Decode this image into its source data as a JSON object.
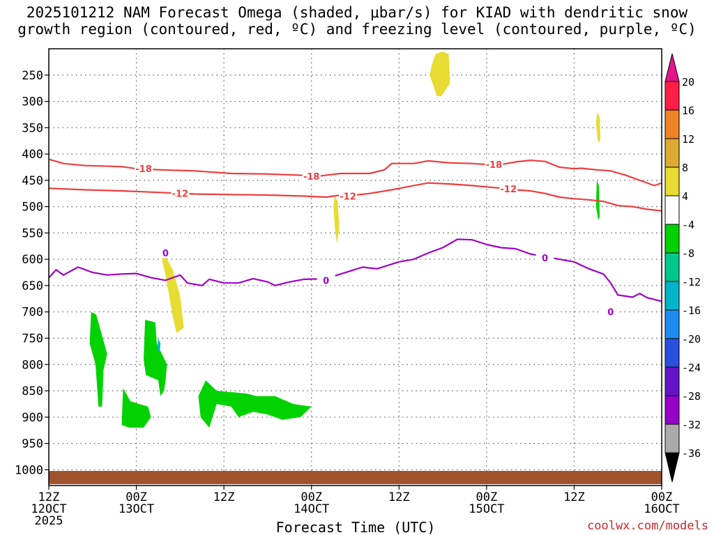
{
  "chart_data": {
    "type": "contour",
    "title_line1": "2025101212 NAM Forecast Omega (shaded, μbar/s) for KIAD with dendritic snow",
    "title_line2": "growth region (contoured, red, ºC) and freezing level (contoured, purple, ºC)",
    "xlabel": "Forecast Time (UTC)",
    "credit": "coolwx.com/models",
    "y_range_hPa": [
      200,
      1030
    ],
    "x_range_hours": [
      0,
      84
    ],
    "y_ticks": [
      250,
      300,
      350,
      400,
      450,
      500,
      550,
      600,
      650,
      700,
      750,
      800,
      850,
      900,
      950,
      1000
    ],
    "x_ticks": [
      {
        "hour": 0,
        "line1": "12Z",
        "line2": "12OCT",
        "line3": "2025"
      },
      {
        "hour": 12,
        "line1": "00Z",
        "line2": "13OCT",
        "line3": ""
      },
      {
        "hour": 24,
        "line1": "12Z",
        "line2": "",
        "line3": ""
      },
      {
        "hour": 36,
        "line1": "00Z",
        "line2": "14OCT",
        "line3": ""
      },
      {
        "hour": 48,
        "line1": "12Z",
        "line2": "",
        "line3": ""
      },
      {
        "hour": 60,
        "line1": "00Z",
        "line2": "15OCT",
        "line3": ""
      },
      {
        "hour": 72,
        "line1": "12Z",
        "line2": "",
        "line3": ""
      },
      {
        "hour": 84,
        "line1": "00Z",
        "line2": "16OCT",
        "line3": ""
      }
    ],
    "colorbar": {
      "levels": [
        "20",
        "16",
        "12",
        "8",
        "4",
        "-4",
        "-8",
        "-12",
        "-16",
        "-20",
        "-24",
        "-28",
        "-32",
        "-36"
      ],
      "colors": [
        "#ff1e46",
        "#f08228",
        "#dcaa32",
        "#e6dc32",
        "#ffffff",
        "#00d200",
        "#00c88c",
        "#00b4c8",
        "#1e8cf0",
        "#2850dc",
        "#6414c8",
        "#9600c8",
        "#aaaaaa"
      ],
      "top_arrow_color": "#e6148c",
      "bottom_arrow_color": "#000000"
    },
    "contours": [
      {
        "name": "dendritic -18C",
        "label": "-18",
        "color": "#f03c3c",
        "points": [
          [
            0,
            410
          ],
          [
            2,
            418
          ],
          [
            5,
            422
          ],
          [
            10,
            424
          ],
          [
            12,
            428
          ],
          [
            15,
            430
          ],
          [
            20,
            432
          ],
          [
            25,
            437
          ],
          [
            30,
            438
          ],
          [
            34,
            440
          ],
          [
            37,
            442
          ],
          [
            40,
            437
          ],
          [
            44,
            437
          ],
          [
            46,
            430
          ],
          [
            47,
            418
          ],
          [
            50,
            418
          ],
          [
            52,
            413
          ],
          [
            55,
            417
          ],
          [
            58,
            418
          ],
          [
            60,
            420
          ],
          [
            62,
            420
          ],
          [
            64,
            415
          ],
          [
            66,
            412
          ],
          [
            68,
            414
          ],
          [
            70,
            425
          ],
          [
            72,
            428
          ],
          [
            73,
            427
          ],
          [
            75,
            430
          ],
          [
            77,
            432
          ],
          [
            79,
            440
          ],
          [
            81,
            450
          ],
          [
            83,
            460
          ],
          [
            84,
            455
          ]
        ],
        "labels_at": [
          [
            13,
            428
          ],
          [
            36,
            442
          ],
          [
            61,
            420
          ]
        ]
      },
      {
        "name": "dendritic -12C",
        "label": "-12",
        "color": "#f03c3c",
        "points": [
          [
            0,
            465
          ],
          [
            5,
            468
          ],
          [
            10,
            470
          ],
          [
            15,
            473
          ],
          [
            20,
            476
          ],
          [
            25,
            477
          ],
          [
            30,
            478
          ],
          [
            35,
            480
          ],
          [
            38,
            482
          ],
          [
            40,
            478
          ],
          [
            42,
            478
          ],
          [
            44,
            475
          ],
          [
            47,
            468
          ],
          [
            50,
            460
          ],
          [
            52,
            455
          ],
          [
            55,
            457
          ],
          [
            58,
            460
          ],
          [
            62,
            465
          ],
          [
            64,
            468
          ],
          [
            66,
            470
          ],
          [
            68,
            475
          ],
          [
            70,
            482
          ],
          [
            72,
            485
          ],
          [
            74,
            487
          ],
          [
            76,
            490
          ],
          [
            78,
            498
          ],
          [
            80,
            500
          ],
          [
            82,
            505
          ],
          [
            84,
            508
          ]
        ],
        "labels_at": [
          [
            18,
            475
          ],
          [
            41,
            480
          ],
          [
            63,
            466
          ]
        ]
      },
      {
        "name": "freezing level 0C",
        "label": "0",
        "color": "#a000c8",
        "points": [
          [
            0,
            635
          ],
          [
            1,
            620
          ],
          [
            2,
            630
          ],
          [
            4,
            615
          ],
          [
            6,
            625
          ],
          [
            8,
            630
          ],
          [
            10,
            628
          ],
          [
            12,
            627
          ],
          [
            14,
            635
          ],
          [
            16,
            640
          ],
          [
            17,
            635
          ],
          [
            18,
            630
          ],
          [
            19,
            645
          ],
          [
            21,
            650
          ],
          [
            22,
            638
          ],
          [
            24,
            645
          ],
          [
            26,
            645
          ],
          [
            28,
            637
          ],
          [
            30,
            643
          ],
          [
            31,
            650
          ],
          [
            33,
            643
          ],
          [
            35,
            638
          ],
          [
            38,
            637
          ],
          [
            40,
            628
          ],
          [
            43,
            615
          ],
          [
            45,
            618
          ],
          [
            48,
            605
          ],
          [
            50,
            600
          ],
          [
            52,
            588
          ],
          [
            54,
            578
          ],
          [
            56,
            562
          ],
          [
            58,
            563
          ],
          [
            60,
            572
          ],
          [
            62,
            578
          ],
          [
            64,
            580
          ],
          [
            66,
            590
          ],
          [
            68,
            595
          ],
          [
            70,
            600
          ],
          [
            72,
            605
          ],
          [
            74,
            618
          ],
          [
            76,
            628
          ],
          [
            77,
            645
          ],
          [
            78,
            668
          ],
          [
            80,
            672
          ],
          [
            81,
            665
          ],
          [
            82,
            673
          ],
          [
            84,
            680
          ]
        ],
        "labels_at": [
          [
            16,
            588
          ],
          [
            38,
            640
          ],
          [
            68,
            597
          ],
          [
            77,
            700
          ]
        ]
      }
    ],
    "omega_regions": [
      {
        "name": "ascent 250hPa",
        "value_range": "4 to 8",
        "color": "#e6dc32",
        "points": [
          [
            52.5,
            230
          ],
          [
            53,
            210
          ],
          [
            54,
            205
          ],
          [
            54.8,
            210
          ],
          [
            55,
            265
          ],
          [
            53.8,
            290
          ],
          [
            53.2,
            290
          ],
          [
            52.2,
            250
          ]
        ]
      },
      {
        "name": "ascent 350hPa",
        "value_range": "4 to 8",
        "color": "#e6dc32",
        "points": [
          [
            75.2,
            320
          ],
          [
            75.5,
            330
          ],
          [
            75.6,
            370
          ],
          [
            75.4,
            380
          ],
          [
            75.2,
            370
          ],
          [
            75.0,
            340
          ]
        ]
      },
      {
        "name": "ascent 520hPa",
        "value_range": "4 to 8",
        "color": "#e6dc32",
        "points": [
          [
            39.2,
            480
          ],
          [
            39.6,
            490
          ],
          [
            39.8,
            540
          ],
          [
            39.5,
            570
          ],
          [
            39.2,
            540
          ],
          [
            39.0,
            500
          ]
        ]
      },
      {
        "name": "ascent 650hPa",
        "value_range": "4 to 8",
        "color": "#e6dc32",
        "points": [
          [
            15.8,
            590
          ],
          [
            17,
            620
          ],
          [
            18,
            670
          ],
          [
            18.5,
            730
          ],
          [
            17.5,
            740
          ],
          [
            17,
            710
          ],
          [
            16.5,
            670
          ],
          [
            16.0,
            630
          ],
          [
            15.5,
            600
          ]
        ]
      },
      {
        "name": "descent 780hPa",
        "value_range": "-4 to -8",
        "color": "#00d200",
        "points": [
          [
            5.8,
            700
          ],
          [
            6.5,
            705
          ],
          [
            8.0,
            780
          ],
          [
            7.5,
            810
          ],
          [
            7.3,
            880
          ],
          [
            6.8,
            880
          ],
          [
            6.4,
            800
          ],
          [
            5.6,
            760
          ]
        ]
      },
      {
        "name": "descent 860hPa",
        "value_range": "-4 to -8",
        "color": "#00d200",
        "points": [
          [
            10.2,
            845
          ],
          [
            11.2,
            870
          ],
          [
            13.6,
            880
          ],
          [
            14.0,
            900
          ],
          [
            13.0,
            920
          ],
          [
            11,
            920
          ],
          [
            10,
            915
          ],
          [
            10.1,
            870
          ]
        ]
      },
      {
        "name": "descent 780hPa b",
        "value_range": "-4 to -8",
        "color": "#00d200",
        "points": [
          [
            13.2,
            715
          ],
          [
            14.6,
            720
          ],
          [
            14.8,
            760
          ],
          [
            16.2,
            800
          ],
          [
            16.0,
            830
          ],
          [
            15.8,
            850
          ],
          [
            15.3,
            860
          ],
          [
            15.0,
            830
          ],
          [
            13.3,
            820
          ],
          [
            13.0,
            790
          ]
        ]
      },
      {
        "name": "descent 870hPa",
        "value_range": "-4 to -8",
        "color": "#00d200",
        "points": [
          [
            21.5,
            830
          ],
          [
            23,
            850
          ],
          [
            27,
            855
          ],
          [
            28.5,
            860
          ],
          [
            31,
            860
          ],
          [
            33.5,
            875
          ],
          [
            36,
            880
          ],
          [
            34.5,
            900
          ],
          [
            32,
            905
          ],
          [
            30,
            895
          ],
          [
            28,
            890
          ],
          [
            26,
            900
          ],
          [
            25,
            880
          ],
          [
            23,
            875
          ],
          [
            22,
            920
          ],
          [
            20.8,
            900
          ],
          [
            20.5,
            860
          ]
        ]
      },
      {
        "name": "descent 480hPa",
        "value_range": "-4 to -8",
        "color": "#00d200",
        "points": [
          [
            75.1,
            450
          ],
          [
            75.4,
            460
          ],
          [
            75.5,
            520
          ],
          [
            75.3,
            525
          ],
          [
            75.0,
            500
          ]
        ]
      },
      {
        "name": "descent 770hPa small",
        "value_range": "-8 to -12",
        "color": "#00b4c8",
        "points": [
          [
            15.0,
            750
          ],
          [
            15.3,
            760
          ],
          [
            15.2,
            780
          ],
          [
            14.9,
            770
          ]
        ]
      }
    ],
    "surface_layer": {
      "name": "ground",
      "color": "#a0522d"
    }
  }
}
